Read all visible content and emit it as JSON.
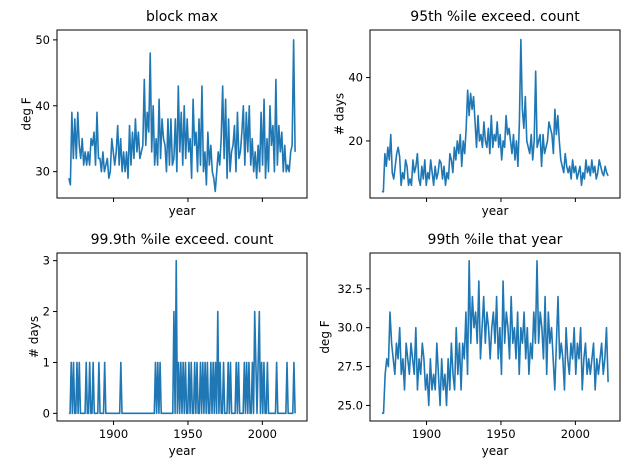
{
  "colors": {
    "series": "#1f77b4"
  },
  "chart_data": [
    {
      "type": "line",
      "title": "block max",
      "xlabel": "year",
      "ylabel": "deg F",
      "xlim": [
        1862,
        2030
      ],
      "ylim": [
        26,
        51.5
      ],
      "xticks": [
        1900,
        1950,
        2000
      ],
      "xticklabels_shown": false,
      "yticks": [
        30,
        40,
        50
      ],
      "yticklabels": [
        "30",
        "40",
        "50"
      ],
      "grid": false,
      "x_start": 1870,
      "series": [
        {
          "values": [
            29,
            28,
            39,
            32,
            38,
            32,
            39,
            34,
            32,
            35,
            31,
            33,
            31,
            33,
            31,
            35,
            34,
            36,
            31,
            39,
            32,
            32,
            30,
            33,
            30,
            31,
            32,
            29,
            30,
            35,
            33,
            31,
            33,
            37,
            31,
            35,
            30,
            33,
            30,
            33,
            29,
            37,
            31,
            36,
            32,
            38,
            33,
            36,
            32,
            33,
            34,
            44,
            34,
            39,
            36,
            48,
            33,
            40,
            31,
            35,
            31,
            41,
            32,
            38,
            35,
            34,
            30,
            38,
            31,
            38,
            31,
            32,
            38,
            30,
            43,
            33,
            39,
            31,
            40,
            32,
            38,
            33,
            35,
            29,
            41,
            34,
            36,
            30,
            38,
            31,
            43,
            30,
            33,
            28,
            36,
            31,
            34,
            30,
            29,
            27,
            30,
            33,
            31,
            35,
            43,
            32,
            41,
            29,
            38,
            30,
            33,
            34,
            37,
            30,
            39,
            32,
            33,
            36,
            40,
            31,
            39,
            33,
            40,
            31,
            35,
            30,
            33,
            29,
            34,
            30,
            39,
            31,
            41,
            29,
            35,
            30,
            40,
            34,
            37,
            30,
            44,
            31,
            37,
            33,
            36,
            30,
            34,
            30,
            31,
            30,
            33,
            34,
            50,
            33
          ]
        }
      ]
    },
    {
      "type": "line",
      "title": "95th %ile exceed. count",
      "xlabel": "year",
      "ylabel": "# days",
      "xlim": [
        1862,
        2030
      ],
      "ylim": [
        2,
        55
      ],
      "xticks": [
        1900,
        1950,
        2000
      ],
      "xticklabels_shown": false,
      "yticks": [
        20,
        40
      ],
      "yticklabels": [
        "20",
        "40"
      ],
      "grid": false,
      "x_start": 1870,
      "series": [
        {
          "values": [
            4,
            4,
            16,
            12,
            18,
            14,
            22,
            10,
            8,
            12,
            16,
            18,
            15,
            6,
            10,
            8,
            14,
            12,
            6,
            8,
            6,
            14,
            10,
            12,
            16,
            8,
            6,
            12,
            8,
            14,
            6,
            10,
            8,
            14,
            10,
            6,
            12,
            8,
            10,
            14,
            13,
            8,
            12,
            6,
            10,
            8,
            16,
            14,
            10,
            18,
            14,
            20,
            16,
            22,
            12,
            20,
            16,
            24,
            36,
            28,
            35,
            30,
            34,
            26,
            18,
            28,
            20,
            22,
            18,
            26,
            20,
            18,
            24,
            16,
            28,
            18,
            22,
            20,
            26,
            18,
            22,
            14,
            20,
            18,
            28,
            22,
            24,
            20,
            16,
            22,
            14,
            20,
            12,
            26,
            52,
            30,
            24,
            34,
            20,
            18,
            16,
            22,
            14,
            20,
            42,
            18,
            20,
            22,
            12,
            22,
            16,
            18,
            20,
            26,
            24,
            22,
            16,
            30,
            22,
            28,
            20,
            14,
            12,
            10,
            16,
            12,
            10,
            12,
            8,
            14,
            10,
            12,
            8,
            10,
            12,
            6,
            10,
            8,
            14,
            10,
            12,
            9,
            14,
            10,
            12,
            8,
            10,
            14,
            12,
            10,
            9,
            12,
            10,
            9
          ]
        }
      ]
    },
    {
      "type": "line",
      "title": "99.9th %ile exceed. count",
      "xlabel": "year",
      "ylabel": "# days",
      "xlim": [
        1862,
        2030
      ],
      "ylim": [
        -0.15,
        3.15
      ],
      "xticks": [
        1900,
        1950,
        2000
      ],
      "xticklabels": [
        "1900",
        "1950",
        "2000"
      ],
      "yticks": [
        0,
        1,
        2,
        3
      ],
      "yticklabels": [
        "0",
        "1",
        "2",
        "3"
      ],
      "grid": false,
      "x_start": 1870,
      "series": [
        {
          "values": [
            0,
            0,
            1,
            0,
            1,
            0,
            0,
            1,
            0,
            1,
            0,
            0,
            0,
            0,
            0,
            1,
            0,
            0,
            1,
            0,
            0,
            1,
            0,
            0,
            0,
            0,
            1,
            0,
            0,
            0,
            0,
            1,
            0,
            0,
            0,
            0,
            0,
            0,
            0,
            0,
            0,
            0,
            0,
            0,
            0,
            1,
            0,
            0,
            0,
            0,
            0,
            0,
            0,
            0,
            0,
            0,
            0,
            0,
            0,
            0,
            0,
            0,
            0,
            0,
            0,
            0,
            0,
            0,
            0,
            0,
            0,
            0,
            0,
            0,
            0,
            1,
            0,
            1,
            0,
            1,
            0,
            0,
            0,
            0,
            0,
            0,
            0,
            0,
            0,
            0,
            0,
            2,
            0,
            3,
            0,
            1,
            0,
            1,
            0,
            1,
            0,
            1,
            0,
            0,
            1,
            0,
            1,
            0,
            0,
            1,
            0,
            1,
            0,
            0,
            1,
            0,
            1,
            0,
            1,
            0,
            1,
            0,
            0,
            1,
            0,
            1,
            0,
            1,
            0,
            2,
            0,
            1,
            0,
            0,
            1,
            0,
            0,
            0,
            1,
            0,
            1,
            0,
            0,
            0,
            0,
            1,
            0,
            1,
            0,
            0,
            0,
            0,
            1,
            0,
            1,
            0,
            1,
            0,
            0,
            1,
            0,
            2,
            1,
            0,
            1,
            2,
            0,
            1,
            0,
            1,
            0,
            0,
            1,
            0,
            0,
            0,
            0,
            0,
            0,
            0,
            1,
            0,
            0,
            0,
            0,
            0,
            0,
            0,
            0,
            1,
            0,
            0,
            0,
            0,
            0,
            1,
            0
          ]
        }
      ]
    },
    {
      "type": "line",
      "title": "99th %ile that year",
      "xlabel": "year",
      "ylabel": "deg F",
      "xlim": [
        1862,
        2030
      ],
      "ylim": [
        24,
        34.8
      ],
      "xticks": [
        1900,
        1950,
        2000
      ],
      "xticklabels": [
        "1900",
        "1950",
        "2000"
      ],
      "yticks": [
        25.0,
        27.5,
        30.0,
        32.5
      ],
      "yticklabels": [
        "25.0",
        "27.5",
        "30.0",
        "32.5"
      ],
      "grid": false,
      "x_start": 1870,
      "series": [
        {
          "values": [
            24.5,
            24.5,
            27,
            28,
            27.5,
            31,
            29,
            28,
            27,
            29,
            28,
            30,
            27,
            28,
            26,
            29,
            28,
            27,
            29,
            28,
            27,
            30,
            26,
            28,
            27,
            29,
            28,
            26,
            27,
            25,
            28,
            26,
            27,
            26,
            29,
            27,
            25,
            28,
            26,
            27,
            25,
            28,
            26,
            29,
            27,
            26,
            30,
            27,
            29,
            26,
            29,
            28,
            31,
            27,
            34.3,
            29,
            32,
            30,
            31,
            29,
            33,
            28,
            30,
            32,
            29,
            31,
            30,
            28,
            30,
            31,
            29,
            32,
            28,
            30,
            27,
            33,
            29,
            31,
            30,
            28,
            32,
            29,
            30,
            28,
            31,
            27,
            30,
            29,
            31,
            28,
            30,
            27,
            29,
            28,
            31,
            29,
            34.3,
            29,
            31,
            30,
            28,
            32,
            27,
            31,
            29,
            30,
            28,
            26,
            29,
            32,
            28,
            29,
            28,
            26,
            30,
            28,
            27,
            29,
            28,
            30,
            27,
            29,
            28,
            30,
            26,
            28,
            29,
            27,
            28,
            27,
            28,
            29,
            26,
            28,
            27,
            28,
            29,
            27,
            28,
            30,
            26.5
          ]
        }
      ]
    }
  ]
}
